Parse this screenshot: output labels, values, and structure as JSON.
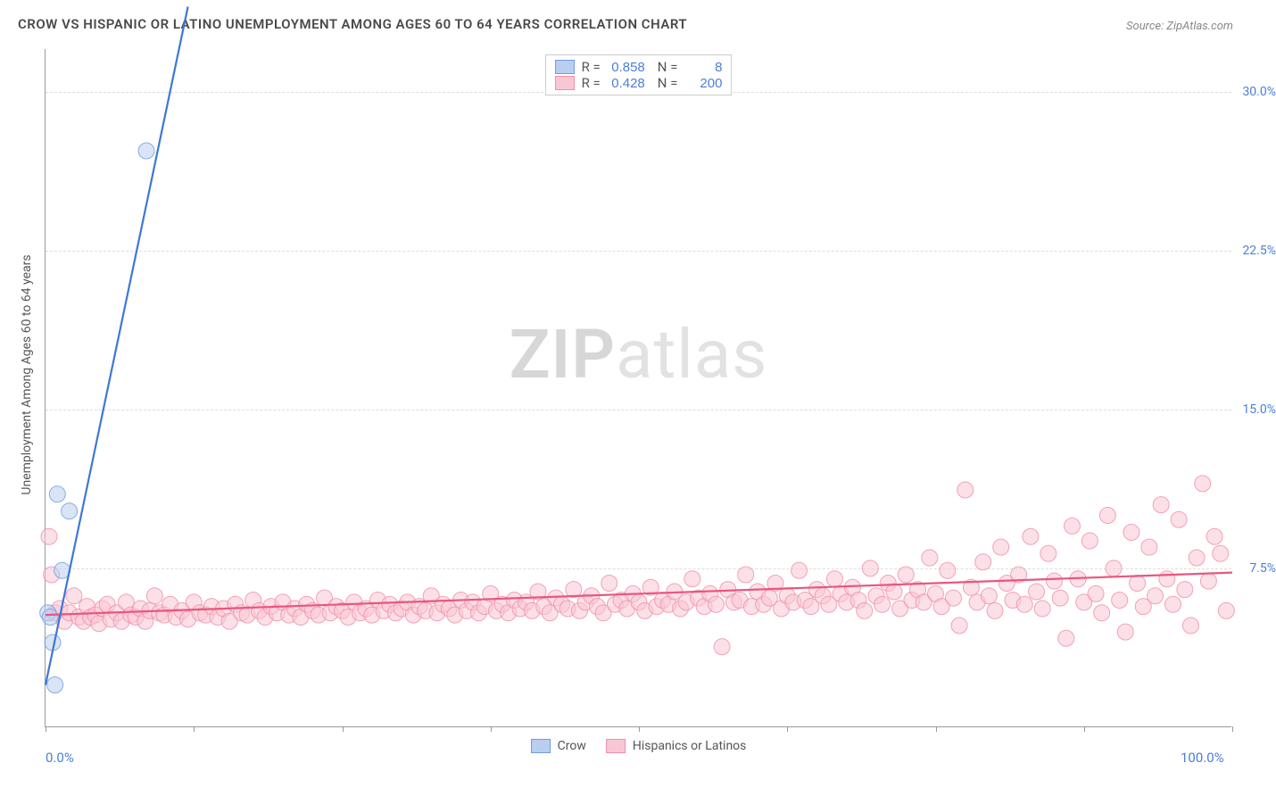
{
  "title": "CROW VS HISPANIC OR LATINO UNEMPLOYMENT AMONG AGES 60 TO 64 YEARS CORRELATION CHART",
  "source": "Source: ZipAtlas.com",
  "y_axis_label": "Unemployment Among Ages 60 to 64 years",
  "watermark": {
    "bold": "ZIP",
    "rest": "atlas"
  },
  "chart": {
    "type": "scatter-with-trendlines",
    "background_color": "#ffffff",
    "grid_color": "#dddddd",
    "axis_color": "#999999",
    "xlim": [
      0,
      100
    ],
    "ylim": [
      0,
      32
    ],
    "x_ticks": [
      0,
      12.5,
      25,
      37.5,
      50,
      62.5,
      75,
      87.5,
      100
    ],
    "x_tick_labels": {
      "0": "0.0%",
      "100": "100.0%"
    },
    "y_ticks": [
      7.5,
      15.0,
      22.5,
      30.0
    ],
    "y_tick_labels": [
      "7.5%",
      "15.0%",
      "22.5%",
      "30.0%"
    ],
    "tick_label_color": "#4a7fd8",
    "tick_label_fontsize": 14,
    "series": {
      "crow": {
        "label": "Crow",
        "color_fill": "#b9cef0",
        "color_stroke": "#6f9ce0",
        "line_color": "#3d78d6",
        "marker_radius": 9,
        "marker_opacity": 0.55,
        "R": "0.858",
        "N": "8",
        "trend": {
          "x1": 0,
          "y1": 2.0,
          "x2": 12,
          "y2": 34
        },
        "points": [
          [
            0.2,
            5.4
          ],
          [
            0.4,
            5.2
          ],
          [
            0.6,
            4.0
          ],
          [
            0.8,
            2.0
          ],
          [
            1.0,
            11.0
          ],
          [
            1.4,
            7.4
          ],
          [
            2.0,
            10.2
          ],
          [
            8.5,
            27.2
          ]
        ]
      },
      "hispanic": {
        "label": "Hispanics or Latinos",
        "color_fill": "#f9c7d3",
        "color_stroke": "#ef8fa8",
        "line_color": "#e9567f",
        "marker_radius": 9,
        "marker_opacity": 0.55,
        "R": "0.428",
        "N": "200",
        "trend": {
          "x1": 0,
          "y1": 5.3,
          "x2": 100,
          "y2": 7.3
        },
        "points": [
          [
            0.3,
            9.0
          ],
          [
            0.5,
            7.2
          ],
          [
            0.8,
            5.4
          ],
          [
            1.2,
            5.6
          ],
          [
            1.6,
            5.0
          ],
          [
            2.0,
            5.4
          ],
          [
            2.4,
            6.2
          ],
          [
            2.8,
            5.2
          ],
          [
            3.2,
            5.0
          ],
          [
            3.5,
            5.7
          ],
          [
            3.8,
            5.2
          ],
          [
            4.2,
            5.3
          ],
          [
            4.5,
            4.9
          ],
          [
            4.8,
            5.6
          ],
          [
            5.2,
            5.8
          ],
          [
            5.5,
            5.1
          ],
          [
            6.0,
            5.4
          ],
          [
            6.4,
            5.0
          ],
          [
            6.8,
            5.9
          ],
          [
            7.2,
            5.3
          ],
          [
            7.6,
            5.2
          ],
          [
            8.0,
            5.6
          ],
          [
            8.4,
            5.0
          ],
          [
            8.8,
            5.5
          ],
          [
            9.2,
            6.2
          ],
          [
            9.6,
            5.4
          ],
          [
            10.0,
            5.3
          ],
          [
            10.5,
            5.8
          ],
          [
            11.0,
            5.2
          ],
          [
            11.5,
            5.5
          ],
          [
            12.0,
            5.1
          ],
          [
            12.5,
            5.9
          ],
          [
            13.0,
            5.4
          ],
          [
            13.5,
            5.3
          ],
          [
            14.0,
            5.7
          ],
          [
            14.5,
            5.2
          ],
          [
            15.0,
            5.6
          ],
          [
            15.5,
            5.0
          ],
          [
            16.0,
            5.8
          ],
          [
            16.5,
            5.4
          ],
          [
            17.0,
            5.3
          ],
          [
            17.5,
            6.0
          ],
          [
            18.0,
            5.5
          ],
          [
            18.5,
            5.2
          ],
          [
            19.0,
            5.7
          ],
          [
            19.5,
            5.4
          ],
          [
            20.0,
            5.9
          ],
          [
            20.5,
            5.3
          ],
          [
            21.0,
            5.6
          ],
          [
            21.5,
            5.2
          ],
          [
            22.0,
            5.8
          ],
          [
            22.5,
            5.5
          ],
          [
            23.0,
            5.3
          ],
          [
            23.5,
            6.1
          ],
          [
            24.0,
            5.4
          ],
          [
            24.5,
            5.7
          ],
          [
            25.0,
            5.5
          ],
          [
            25.5,
            5.2
          ],
          [
            26.0,
            5.9
          ],
          [
            26.5,
            5.4
          ],
          [
            27.0,
            5.6
          ],
          [
            27.5,
            5.3
          ],
          [
            28.0,
            6.0
          ],
          [
            28.5,
            5.5
          ],
          [
            29.0,
            5.8
          ],
          [
            29.5,
            5.4
          ],
          [
            30.0,
            5.6
          ],
          [
            30.5,
            5.9
          ],
          [
            31.0,
            5.3
          ],
          [
            31.5,
            5.7
          ],
          [
            32.0,
            5.5
          ],
          [
            32.5,
            6.2
          ],
          [
            33.0,
            5.4
          ],
          [
            33.5,
            5.8
          ],
          [
            34.0,
            5.6
          ],
          [
            34.5,
            5.3
          ],
          [
            35.0,
            6.0
          ],
          [
            35.5,
            5.5
          ],
          [
            36.0,
            5.9
          ],
          [
            36.5,
            5.4
          ],
          [
            37.0,
            5.7
          ],
          [
            37.5,
            6.3
          ],
          [
            38.0,
            5.5
          ],
          [
            38.5,
            5.8
          ],
          [
            39.0,
            5.4
          ],
          [
            39.5,
            6.0
          ],
          [
            40.0,
            5.6
          ],
          [
            40.5,
            5.9
          ],
          [
            41.0,
            5.5
          ],
          [
            41.5,
            6.4
          ],
          [
            42.0,
            5.7
          ],
          [
            42.5,
            5.4
          ],
          [
            43.0,
            6.1
          ],
          [
            43.5,
            5.8
          ],
          [
            44.0,
            5.6
          ],
          [
            44.5,
            6.5
          ],
          [
            45.0,
            5.5
          ],
          [
            45.5,
            5.9
          ],
          [
            46.0,
            6.2
          ],
          [
            46.5,
            5.7
          ],
          [
            47.0,
            5.4
          ],
          [
            47.5,
            6.8
          ],
          [
            48.0,
            5.8
          ],
          [
            48.5,
            6.0
          ],
          [
            49.0,
            5.6
          ],
          [
            49.5,
            6.3
          ],
          [
            50.0,
            5.9
          ],
          [
            50.5,
            5.5
          ],
          [
            51.0,
            6.6
          ],
          [
            51.5,
            5.7
          ],
          [
            52.0,
            6.0
          ],
          [
            52.5,
            5.8
          ],
          [
            53.0,
            6.4
          ],
          [
            53.5,
            5.6
          ],
          [
            54.0,
            5.9
          ],
          [
            54.5,
            7.0
          ],
          [
            55.0,
            6.1
          ],
          [
            55.5,
            5.7
          ],
          [
            56.0,
            6.3
          ],
          [
            56.5,
            5.8
          ],
          [
            57.0,
            3.8
          ],
          [
            57.5,
            6.5
          ],
          [
            58.0,
            5.9
          ],
          [
            58.5,
            6.0
          ],
          [
            59.0,
            7.2
          ],
          [
            59.5,
            5.7
          ],
          [
            60.0,
            6.4
          ],
          [
            60.5,
            5.8
          ],
          [
            61.0,
            6.1
          ],
          [
            61.5,
            6.8
          ],
          [
            62.0,
            5.6
          ],
          [
            62.5,
            6.2
          ],
          [
            63.0,
            5.9
          ],
          [
            63.5,
            7.4
          ],
          [
            64.0,
            6.0
          ],
          [
            64.5,
            5.7
          ],
          [
            65.0,
            6.5
          ],
          [
            65.5,
            6.2
          ],
          [
            66.0,
            5.8
          ],
          [
            66.5,
            7.0
          ],
          [
            67.0,
            6.3
          ],
          [
            67.5,
            5.9
          ],
          [
            68.0,
            6.6
          ],
          [
            68.5,
            6.0
          ],
          [
            69.0,
            5.5
          ],
          [
            69.5,
            7.5
          ],
          [
            70.0,
            6.2
          ],
          [
            70.5,
            5.8
          ],
          [
            71.0,
            6.8
          ],
          [
            71.5,
            6.4
          ],
          [
            72.0,
            5.6
          ],
          [
            72.5,
            7.2
          ],
          [
            73.0,
            6.0
          ],
          [
            73.5,
            6.5
          ],
          [
            74.0,
            5.9
          ],
          [
            74.5,
            8.0
          ],
          [
            75.0,
            6.3
          ],
          [
            75.5,
            5.7
          ],
          [
            76.0,
            7.4
          ],
          [
            76.5,
            6.1
          ],
          [
            77.0,
            4.8
          ],
          [
            77.5,
            11.2
          ],
          [
            78.0,
            6.6
          ],
          [
            78.5,
            5.9
          ],
          [
            79.0,
            7.8
          ],
          [
            79.5,
            6.2
          ],
          [
            80.0,
            5.5
          ],
          [
            80.5,
            8.5
          ],
          [
            81.0,
            6.8
          ],
          [
            81.5,
            6.0
          ],
          [
            82.0,
            7.2
          ],
          [
            82.5,
            5.8
          ],
          [
            83.0,
            9.0
          ],
          [
            83.5,
            6.4
          ],
          [
            84.0,
            5.6
          ],
          [
            84.5,
            8.2
          ],
          [
            85.0,
            6.9
          ],
          [
            85.5,
            6.1
          ],
          [
            86.0,
            4.2
          ],
          [
            86.5,
            9.5
          ],
          [
            87.0,
            7.0
          ],
          [
            87.5,
            5.9
          ],
          [
            88.0,
            8.8
          ],
          [
            88.5,
            6.3
          ],
          [
            89.0,
            5.4
          ],
          [
            89.5,
            10.0
          ],
          [
            90.0,
            7.5
          ],
          [
            90.5,
            6.0
          ],
          [
            91.0,
            4.5
          ],
          [
            91.5,
            9.2
          ],
          [
            92.0,
            6.8
          ],
          [
            92.5,
            5.7
          ],
          [
            93.0,
            8.5
          ],
          [
            93.5,
            6.2
          ],
          [
            94.0,
            10.5
          ],
          [
            94.5,
            7.0
          ],
          [
            95.0,
            5.8
          ],
          [
            95.5,
            9.8
          ],
          [
            96.0,
            6.5
          ],
          [
            96.5,
            4.8
          ],
          [
            97.0,
            8.0
          ],
          [
            97.5,
            11.5
          ],
          [
            98.0,
            6.9
          ],
          [
            98.5,
            9.0
          ],
          [
            99.0,
            8.2
          ],
          [
            99.5,
            5.5
          ]
        ]
      }
    }
  },
  "legend_top_rows": [
    {
      "series": "crow",
      "labels": [
        "R =",
        "N ="
      ]
    },
    {
      "series": "hispanic",
      "labels": [
        "R =",
        "N ="
      ]
    }
  ],
  "legend_bottom": [
    {
      "series": "crow"
    },
    {
      "series": "hispanic"
    }
  ]
}
